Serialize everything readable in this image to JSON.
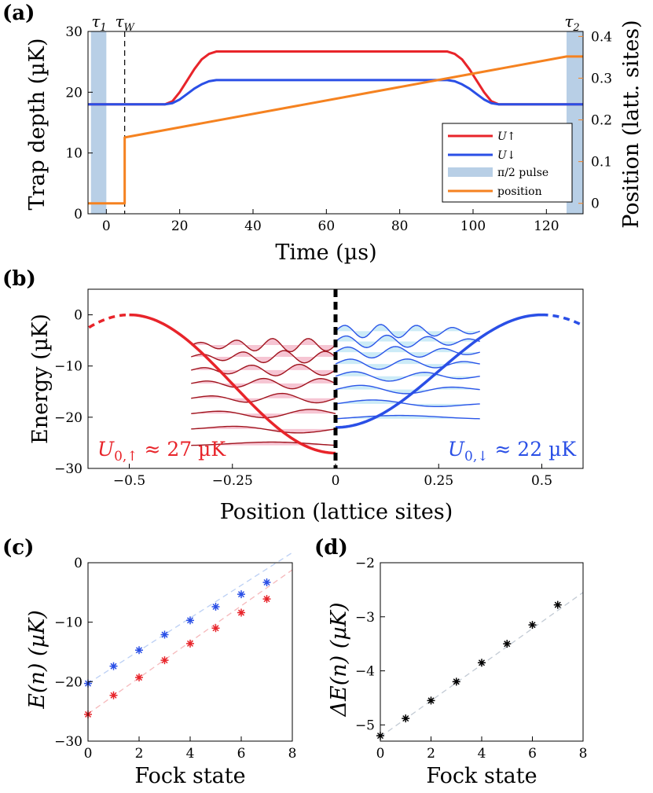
{
  "colors": {
    "up": "#e8242a",
    "down": "#2a4fe6",
    "pulse": "#b8cfe6",
    "position": "#f58220",
    "up_fill": "#f4b6c8",
    "down_fill": "#bfe6f5",
    "up_wave": "#a0141e",
    "down_wave": "#2a55e8",
    "black": "#000000"
  },
  "chart_data": [
    {
      "panel": "(a)",
      "type": "line",
      "xlabel": "Time (µs)",
      "ylabel": "Trap depth (µK)",
      "y2label": "Position (latt. sites)",
      "xlim": [
        -5,
        130
      ],
      "ylim": [
        0,
        30
      ],
      "y2lim": [
        -0.025,
        0.412
      ],
      "xticks": [
        0,
        20,
        40,
        60,
        80,
        100,
        120
      ],
      "xtick_labels": [
        "0",
        "20",
        "40",
        "60",
        "80",
        "100",
        "120"
      ],
      "yticks": [
        0,
        10,
        20,
        30
      ],
      "ytick_labels": [
        "0",
        "10",
        "20",
        "30"
      ],
      "y2ticks": [
        0,
        0.1,
        0.2,
        0.3,
        0.4
      ],
      "y2tick_labels": [
        "0",
        "0.1",
        "0.2",
        "0.3",
        "0.4"
      ],
      "markers": [
        {
          "label": "τ1",
          "x": -2
        },
        {
          "label": "τW",
          "x": 5
        },
        {
          "label": "τ2",
          "x": 127
        }
      ],
      "pulses": [
        {
          "x0": -4.2,
          "x1": 0
        },
        {
          "x0": 125.5,
          "x1": 130
        }
      ],
      "series": [
        {
          "name": "U↑",
          "legend": "U↑",
          "color_key": "up",
          "x": [
            -5,
            16,
            18,
            20,
            22,
            24,
            26,
            28,
            30,
            93,
            95,
            97,
            99,
            101,
            103,
            105,
            107,
            130
          ],
          "y": [
            18,
            18,
            18.5,
            20,
            21.9,
            23.8,
            25.4,
            26.3,
            26.7,
            26.7,
            26.3,
            25.4,
            23.8,
            21.9,
            20,
            18.5,
            18,
            18
          ]
        },
        {
          "name": "U↓",
          "legend": "U↓",
          "color_key": "down",
          "x": [
            -5,
            16,
            18,
            20,
            22,
            24,
            26,
            28,
            30,
            93,
            95,
            97,
            99,
            101,
            103,
            105,
            107,
            130
          ],
          "y": [
            18,
            18,
            18.2,
            18.8,
            19.7,
            20.6,
            21.3,
            21.8,
            22,
            22,
            21.8,
            21.3,
            20.6,
            19.7,
            18.8,
            18.2,
            18,
            18
          ]
        },
        {
          "name": "position",
          "legend": "position",
          "color_key": "position",
          "axis": "right",
          "x": [
            -5,
            5,
            5,
            125.5,
            130
          ],
          "y": [
            0,
            0,
            0.158,
            0.352,
            0.352
          ]
        }
      ],
      "legend_pulse": "π/2 pulse"
    },
    {
      "panel": "(b)",
      "type": "line",
      "xlabel": "Position (lattice sites)",
      "ylabel": "Energy (µK)",
      "xlim": [
        -0.6,
        0.6
      ],
      "ylim": [
        -30,
        5
      ],
      "xticks": [
        -0.5,
        -0.25,
        0,
        0.25,
        0.5
      ],
      "xtick_labels": [
        "−0.5",
        "−0.25",
        "0",
        "0.25",
        "0.5"
      ],
      "yticks": [
        -30,
        -20,
        -10,
        0
      ],
      "ytick_labels": [
        "−30",
        "−20",
        "−10",
        "0"
      ],
      "depth_up": 27,
      "depth_down": 22,
      "annotations": [
        {
          "text": "U0,↑ ≈ 27 µK",
          "main": "U",
          "sub": "0,↑",
          "rest": " ≈ 27 µK",
          "color_key": "up"
        },
        {
          "text": "U0,↓ ≈ 22 µK",
          "main": "U",
          "sub": "0,↓",
          "rest": " ≈ 22 µK",
          "color_key": "down"
        }
      ],
      "up_levels": [
        -25.5,
        -22.3,
        -19.3,
        -16.3,
        -13.4,
        -10.8,
        -8.2,
        -5.9
      ],
      "down_levels": [
        -20.3,
        -17.4,
        -14.6,
        -12.0,
        -9.6,
        -7.3,
        -5.2,
        -3.2
      ]
    },
    {
      "panel": "(c)",
      "type": "scatter",
      "xlabel": "Fock state",
      "ylabel": "E(n) (µK)",
      "xlim": [
        0,
        8
      ],
      "ylim": [
        -30,
        0
      ],
      "xticks": [
        0,
        2,
        4,
        6,
        8
      ],
      "xtick_labels": [
        "0",
        "2",
        "4",
        "6",
        "8"
      ],
      "yticks": [
        -30,
        -20,
        -10,
        0
      ],
      "ytick_labels": [
        "−30",
        "−20",
        "−10",
        "0"
      ],
      "series": [
        {
          "name": "down",
          "color_key": "down",
          "x": [
            0,
            1,
            2,
            3,
            4,
            5,
            6,
            7
          ],
          "y": [
            -20.3,
            -17.4,
            -14.7,
            -12.1,
            -9.7,
            -7.4,
            -5.3,
            -3.3
          ],
          "fit": [
            [
              0,
              -20.3
            ],
            [
              8,
              1.7
            ]
          ]
        },
        {
          "name": "up",
          "color_key": "up",
          "x": [
            0,
            1,
            2,
            3,
            4,
            5,
            6,
            7
          ],
          "y": [
            -25.5,
            -22.3,
            -19.3,
            -16.4,
            -13.6,
            -11.0,
            -8.4,
            -6.1
          ],
          "fit": [
            [
              0,
              -25.4
            ],
            [
              8,
              -1.2
            ]
          ]
        }
      ]
    },
    {
      "panel": "(d)",
      "type": "scatter",
      "xlabel": "Fock state",
      "ylabel": "ΔE(n) (µK)",
      "xlim": [
        0,
        8
      ],
      "ylim": [
        -5.3,
        -2
      ],
      "xticks": [
        0,
        2,
        4,
        6,
        8
      ],
      "xtick_labels": [
        "0",
        "2",
        "4",
        "6",
        "8"
      ],
      "yticks": [
        -5,
        -4,
        -3,
        -2
      ],
      "ytick_labels": [
        "−5",
        "−4",
        "−3",
        "−2"
      ],
      "series": [
        {
          "name": "ΔE",
          "color_key": "black",
          "x": [
            0,
            1,
            2,
            3,
            4,
            5,
            6,
            7
          ],
          "y": [
            -5.2,
            -4.88,
            -4.55,
            -4.2,
            -3.85,
            -3.5,
            -3.15,
            -2.78
          ],
          "fit": [
            [
              0,
              -5.22
            ],
            [
              8,
              -2.55
            ]
          ]
        }
      ]
    }
  ]
}
